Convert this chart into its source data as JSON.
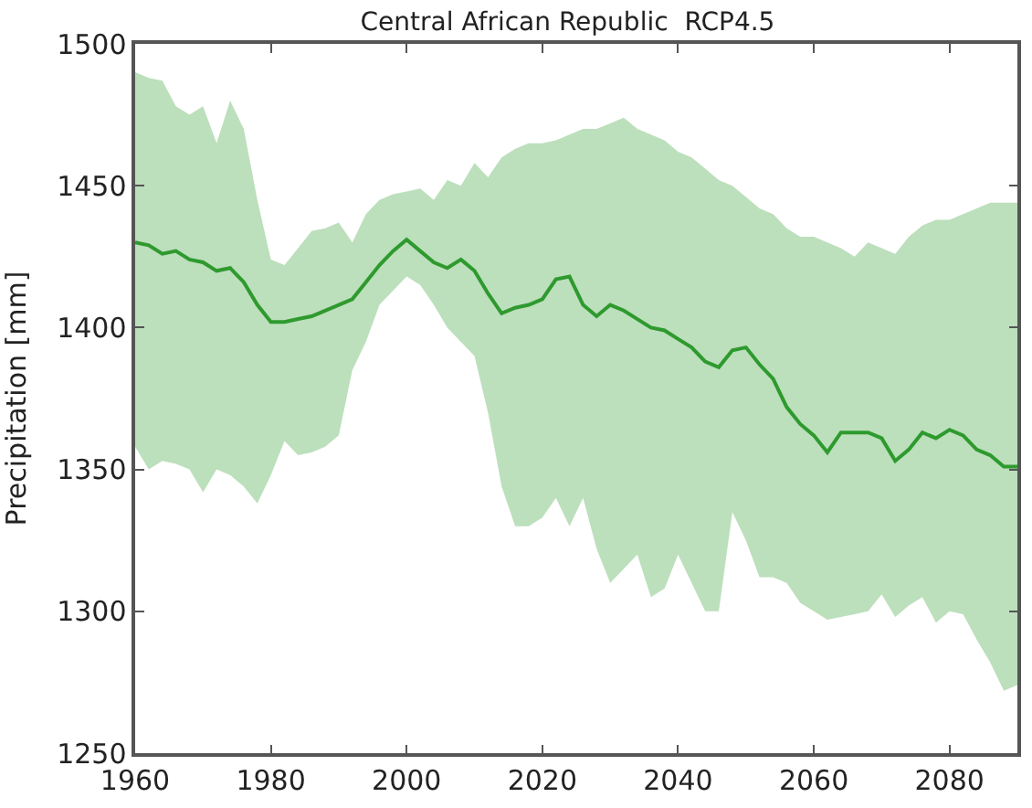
{
  "chart_data": {
    "type": "line",
    "title": "Central African Republic  RCP4.5",
    "ylabel": "Precipitation [mm]",
    "x": [
      1960,
      1962,
      1964,
      1966,
      1968,
      1970,
      1972,
      1974,
      1976,
      1978,
      1980,
      1982,
      1984,
      1986,
      1988,
      1990,
      1992,
      1994,
      1996,
      1998,
      2000,
      2002,
      2004,
      2006,
      2008,
      2010,
      2012,
      2014,
      2016,
      2018,
      2020,
      2022,
      2024,
      2026,
      2028,
      2030,
      2032,
      2034,
      2036,
      2038,
      2040,
      2042,
      2044,
      2046,
      2048,
      2050,
      2052,
      2054,
      2056,
      2058,
      2060,
      2062,
      2064,
      2066,
      2068,
      2070,
      2072,
      2074,
      2076,
      2078,
      2080,
      2082,
      2084,
      2086,
      2088,
      2090
    ],
    "series": [
      {
        "color": "#2e9a2e",
        "values": [
          1430,
          1429,
          1426,
          1427,
          1424,
          1423,
          1420,
          1421,
          1416,
          1408,
          1402,
          1402,
          1403,
          1404,
          1406,
          1408,
          1410,
          1416,
          1422,
          1427,
          1431,
          1427,
          1423,
          1421,
          1424,
          1420,
          1412,
          1405,
          1407,
          1408,
          1410,
          1417,
          1418,
          1408,
          1404,
          1408,
          1406,
          1403,
          1400,
          1399,
          1396,
          1393,
          1388,
          1386,
          1392,
          1393,
          1387,
          1382,
          1372,
          1366,
          1362,
          1356,
          1363,
          1363,
          1363,
          1361,
          1353,
          1357,
          1363,
          1361,
          1364,
          1362,
          1357,
          1355,
          1351,
          1351
        ],
        "upper": [
          1490,
          1488,
          1487,
          1478,
          1475,
          1478,
          1465,
          1480,
          1470,
          1445,
          1424,
          1422,
          1428,
          1434,
          1435,
          1437,
          1430,
          1440,
          1445,
          1447,
          1448,
          1449,
          1445,
          1452,
          1450,
          1458,
          1453,
          1460,
          1463,
          1465,
          1465,
          1466,
          1468,
          1470,
          1470,
          1472,
          1474,
          1470,
          1468,
          1466,
          1462,
          1460,
          1456,
          1452,
          1450,
          1446,
          1442,
          1440,
          1435,
          1432,
          1432,
          1430,
          1428,
          1425,
          1430,
          1428,
          1426,
          1432,
          1436,
          1438,
          1438,
          1440,
          1442,
          1444,
          1444,
          1444
        ],
        "lower": [
          1358,
          1350,
          1353,
          1352,
          1350,
          1342,
          1350,
          1348,
          1344,
          1338,
          1348,
          1360,
          1355,
          1356,
          1358,
          1362,
          1385,
          1395,
          1408,
          1413,
          1418,
          1415,
          1408,
          1400,
          1395,
          1390,
          1370,
          1344,
          1330,
          1330,
          1333,
          1340,
          1330,
          1340,
          1322,
          1310,
          1315,
          1320,
          1305,
          1308,
          1320,
          1310,
          1300,
          1300,
          1335,
          1325,
          1312,
          1312,
          1310,
          1303,
          1300,
          1297,
          1298,
          1299,
          1300,
          1306,
          1298,
          1302,
          1305,
          1296,
          1300,
          1299,
          1290,
          1282,
          1272,
          1274
        ]
      }
    ],
    "xlim": [
      1960,
      2090
    ],
    "xticks": [
      1960,
      1980,
      2000,
      2020,
      2040,
      2060,
      2080
    ],
    "ylim": [
      1250,
      1500
    ],
    "yticks": [
      1250,
      1300,
      1350,
      1400,
      1450,
      1500
    ],
    "marker": "none",
    "line_style": "solid"
  }
}
